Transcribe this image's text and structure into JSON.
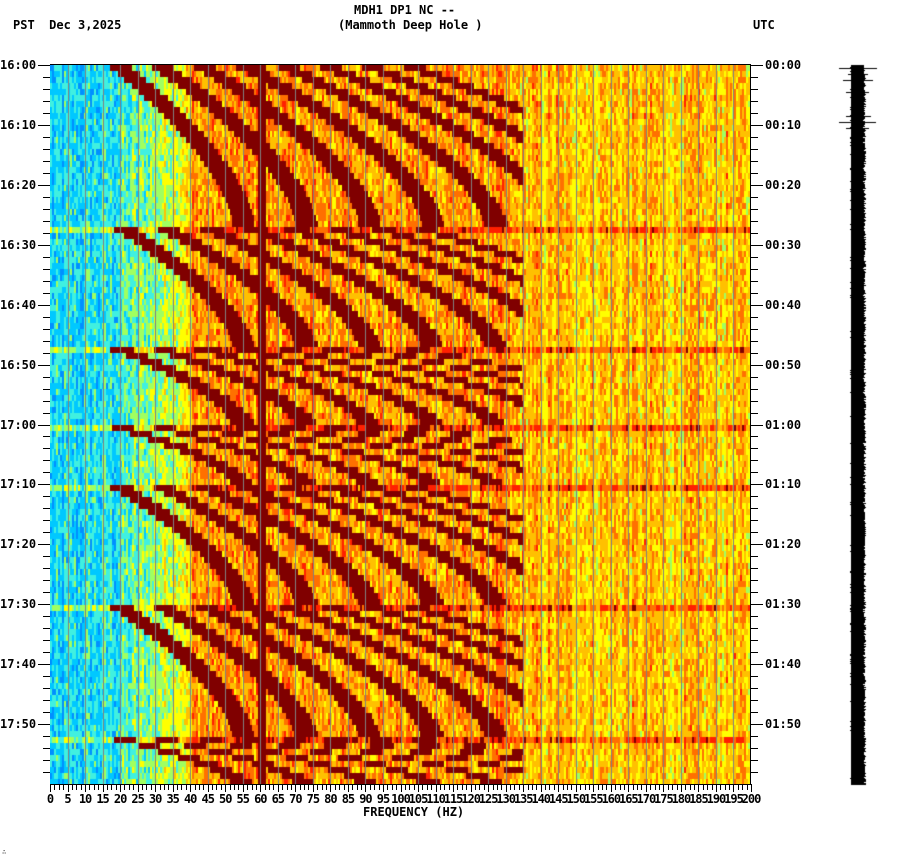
{
  "header": {
    "title_line1": "MDH1 DP1 NC --",
    "title_line2": "(Mammoth Deep Hole )",
    "left_timezone_date": "PST  Dec 3,2025",
    "right_timezone": "UTC"
  },
  "colors": {
    "background": "#ffffff",
    "axis": "#000000",
    "gridline": "#808080",
    "trace": "#000000",
    "colormap": [
      "#0050ff",
      "#0090ff",
      "#00c8ff",
      "#40f0e0",
      "#a0ff60",
      "#ffff00",
      "#ffc000",
      "#ff7000",
      "#ff2000",
      "#800000"
    ]
  },
  "footer": {
    "corner_mark": "∴"
  },
  "chart_data": {
    "type": "heatmap",
    "title": "MDH1 DP1 NC -- (Mammoth Deep Hole )",
    "subtitle": "PST  Dec 3,2025",
    "xlabel": "FREQUENCY (HZ)",
    "ylabel_left": "PST",
    "ylabel_right": "UTC",
    "xlim": [
      0,
      200
    ],
    "x_ticks": [
      0,
      5,
      10,
      15,
      20,
      25,
      30,
      35,
      40,
      45,
      50,
      55,
      60,
      65,
      70,
      75,
      80,
      85,
      90,
      95,
      100,
      105,
      110,
      115,
      120,
      125,
      130,
      135,
      140,
      145,
      150,
      155,
      160,
      165,
      170,
      175,
      180,
      185,
      190,
      195,
      200
    ],
    "x_tick_labels": [
      "0",
      "5",
      "10",
      "15",
      "20",
      "25",
      "30",
      "35",
      "40",
      "45",
      "50",
      "55",
      "60",
      "65",
      "70",
      "75",
      "80",
      "85",
      "90",
      "95",
      "100",
      "105",
      "110",
      "115",
      "120",
      "125",
      "130",
      "135",
      "140",
      "145",
      "150",
      "155",
      "160",
      "165",
      "170",
      "175",
      "180",
      "185",
      "190",
      "195",
      "200"
    ],
    "y_ticks_left": [
      "16:00",
      "16:10",
      "16:20",
      "16:30",
      "16:40",
      "16:50",
      "17:00",
      "17:10",
      "17:20",
      "17:30",
      "17:40",
      "17:50"
    ],
    "y_ticks_right": [
      "00:00",
      "00:10",
      "00:20",
      "00:30",
      "00:40",
      "00:50",
      "01:00",
      "01:10",
      "01:20",
      "01:30",
      "01:40",
      "01:50"
    ],
    "y_range_minutes": [
      0,
      120
    ],
    "minor_tick_minutes": 2,
    "grid": {
      "vertical_every_hz": 5,
      "horizontal": false
    },
    "features": {
      "persistent_line_hz": 60,
      "low_freq_band": {
        "from_hz": 0,
        "to_hz": 35,
        "level": "low (blue/cyan)"
      },
      "high_freq_band": {
        "from_hz": 130,
        "to_hz": 200,
        "level": "medium (yellow/orange)"
      },
      "sweep_resets_minutes": [
        0,
        26.5,
        47,
        60,
        70,
        90,
        112
      ],
      "sweep_description": "Repeating curved harmonic sweeps (dark red) rising in frequency over time, each sweep starting near 20-35 Hz and fanning out to ~130 Hz",
      "harmonic_count": 8
    },
    "legend": null
  },
  "trace_panel": {
    "description": "Seismic amplitude trace",
    "spike_minutes": [
      0.5,
      1.5,
      2.5,
      4.5,
      8.5,
      9.5,
      10.5
    ]
  }
}
